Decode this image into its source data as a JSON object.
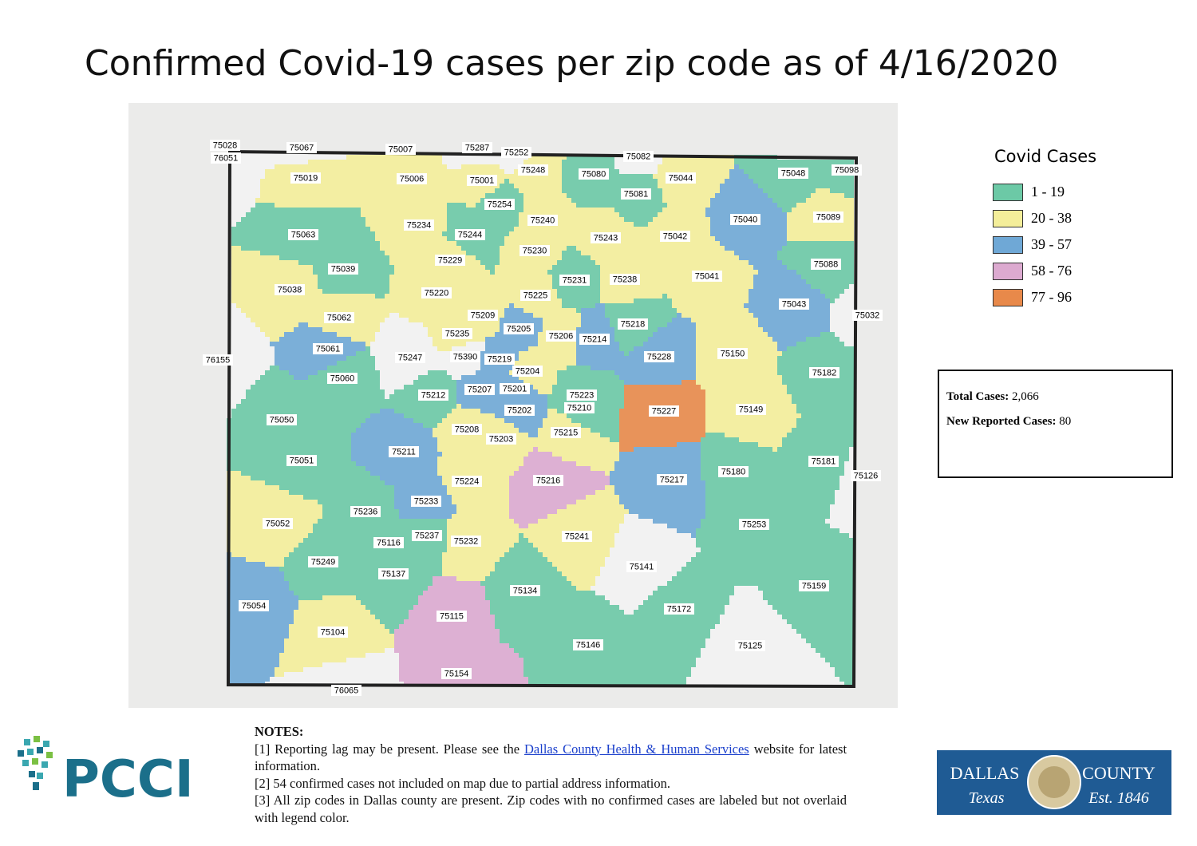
{
  "title": "Confirmed Covid-19 cases per zip code as of 4/16/2020",
  "map": {
    "zips": [
      {
        "label": "75028",
        "color": "#f3f3f3"
      },
      {
        "label": "76051",
        "color": "#f3f3f3"
      },
      {
        "label": "75067",
        "color": "#f3f3f3"
      },
      {
        "label": "75007",
        "color": "#f4ee9a"
      },
      {
        "label": "75287",
        "color": "#f3f3f3"
      },
      {
        "label": "75252",
        "color": "#f3f3f3"
      },
      {
        "label": "75082",
        "color": "#f3f3f3"
      },
      {
        "label": "75019",
        "color": "#f4ee9a"
      },
      {
        "label": "75006",
        "color": "#f4ee9a"
      },
      {
        "label": "75001",
        "color": "#f4ee9a"
      },
      {
        "label": "75248",
        "color": "#f4ee9a"
      },
      {
        "label": "75080",
        "color": "#6cc9a6"
      },
      {
        "label": "75044",
        "color": "#f4ee9a"
      },
      {
        "label": "75048",
        "color": "#6cc9a6"
      },
      {
        "label": "75098",
        "color": "#6cc9a6"
      },
      {
        "label": "75081",
        "color": "#6cc9a6"
      },
      {
        "label": "75254",
        "color": "#6cc9a6"
      },
      {
        "label": "75040",
        "color": "#6fa8d6"
      },
      {
        "label": "75089",
        "color": "#f4ee9a"
      },
      {
        "label": "75234",
        "color": "#f4ee9a"
      },
      {
        "label": "75240",
        "color": "#f4ee9a"
      },
      {
        "label": "75063",
        "color": "#6cc9a6"
      },
      {
        "label": "75244",
        "color": "#6cc9a6"
      },
      {
        "label": "75243",
        "color": "#f4ee9a"
      },
      {
        "label": "75042",
        "color": "#f4ee9a"
      },
      {
        "label": "75230",
        "color": "#f4ee9a"
      },
      {
        "label": "75229",
        "color": "#f4ee9a"
      },
      {
        "label": "75088",
        "color": "#6cc9a6"
      },
      {
        "label": "75039",
        "color": "#6cc9a6"
      },
      {
        "label": "75231",
        "color": "#6cc9a6"
      },
      {
        "label": "75238",
        "color": "#f4ee9a"
      },
      {
        "label": "75041",
        "color": "#f4ee9a"
      },
      {
        "label": "75038",
        "color": "#f4ee9a"
      },
      {
        "label": "75220",
        "color": "#f4ee9a"
      },
      {
        "label": "75225",
        "color": "#f4ee9a"
      },
      {
        "label": "75043",
        "color": "#6fa8d6"
      },
      {
        "label": "75062",
        "color": "#f4ee9a"
      },
      {
        "label": "75209",
        "color": "#f4ee9a"
      },
      {
        "label": "75032",
        "color": "#f3f3f3"
      },
      {
        "label": "75205",
        "color": "#6fa8d6"
      },
      {
        "label": "75218",
        "color": "#6cc9a6"
      },
      {
        "label": "75235",
        "color": "#f4ee9a"
      },
      {
        "label": "75206",
        "color": "#f4ee9a"
      },
      {
        "label": "75214",
        "color": "#6fa8d6"
      },
      {
        "label": "75061",
        "color": "#6fa8d6"
      },
      {
        "label": "75247",
        "color": "#f3f3f3"
      },
      {
        "label": "75390",
        "color": "#f3f3f3"
      },
      {
        "label": "75219",
        "color": "#6fa8d6"
      },
      {
        "label": "75228",
        "color": "#6fa8d6"
      },
      {
        "label": "75150",
        "color": "#f4ee9a"
      },
      {
        "label": "76155",
        "color": "#f3f3f3"
      },
      {
        "label": "75204",
        "color": "#f4ee9a"
      },
      {
        "label": "75182",
        "color": "#6cc9a6"
      },
      {
        "label": "75060",
        "color": "#6cc9a6"
      },
      {
        "label": "75201",
        "color": "#6fa8d6"
      },
      {
        "label": "75223",
        "color": "#6cc9a6"
      },
      {
        "label": "75212",
        "color": "#6cc9a6"
      },
      {
        "label": "75207",
        "color": "#6fa8d6"
      },
      {
        "label": "75210",
        "color": "#6cc9a6"
      },
      {
        "label": "75227",
        "color": "#e8894a"
      },
      {
        "label": "75202",
        "color": "#6fa8d6"
      },
      {
        "label": "75149",
        "color": "#f4ee9a"
      },
      {
        "label": "75050",
        "color": "#6cc9a6"
      },
      {
        "label": "75208",
        "color": "#f4ee9a"
      },
      {
        "label": "75203",
        "color": "#f4ee9a"
      },
      {
        "label": "75215",
        "color": "#f4ee9a"
      },
      {
        "label": "75211",
        "color": "#6fa8d6"
      },
      {
        "label": "75051",
        "color": "#6cc9a6"
      },
      {
        "label": "75181",
        "color": "#6cc9a6"
      },
      {
        "label": "75180",
        "color": "#6cc9a6"
      },
      {
        "label": "75126",
        "color": "#f3f3f3"
      },
      {
        "label": "75217",
        "color": "#6fa8d6"
      },
      {
        "label": "75224",
        "color": "#f4ee9a"
      },
      {
        "label": "75216",
        "color": "#dcaad0"
      },
      {
        "label": "75233",
        "color": "#6fa8d6"
      },
      {
        "label": "75236",
        "color": "#6cc9a6"
      },
      {
        "label": "75052",
        "color": "#f4ee9a"
      },
      {
        "label": "75253",
        "color": "#6cc9a6"
      },
      {
        "label": "75241",
        "color": "#f4ee9a"
      },
      {
        "label": "75237",
        "color": "#6cc9a6"
      },
      {
        "label": "75116",
        "color": "#6cc9a6"
      },
      {
        "label": "75232",
        "color": "#f4ee9a"
      },
      {
        "label": "75249",
        "color": "#6cc9a6"
      },
      {
        "label": "75141",
        "color": "#f3f3f3"
      },
      {
        "label": "75137",
        "color": "#6cc9a6"
      },
      {
        "label": "75159",
        "color": "#6cc9a6"
      },
      {
        "label": "75134",
        "color": "#6cc9a6"
      },
      {
        "label": "75054",
        "color": "#6fa8d6"
      },
      {
        "label": "75172",
        "color": "#6cc9a6"
      },
      {
        "label": "75115",
        "color": "#dcaad0"
      },
      {
        "label": "75104",
        "color": "#f4ee9a"
      },
      {
        "label": "75146",
        "color": "#6cc9a6"
      },
      {
        "label": "75125",
        "color": "#f3f3f3"
      },
      {
        "label": "75154",
        "color": "#dcaad0"
      },
      {
        "label": "76065",
        "color": "#f3f3f3"
      }
    ]
  },
  "legend": {
    "title": "Covid Cases",
    "items": [
      {
        "label": "1 - 19",
        "color": "#6cc9a6"
      },
      {
        "label": "20 - 38",
        "color": "#f4ee9a"
      },
      {
        "label": "39 - 57",
        "color": "#6fa8d6"
      },
      {
        "label": "58 - 76",
        "color": "#dcaad0"
      },
      {
        "label": "77 - 96",
        "color": "#e8894a"
      }
    ]
  },
  "stats": {
    "total_label": "Total Cases:",
    "total": "2,066",
    "new_label": "New Reported Cases:",
    "new": "80"
  },
  "notes": {
    "heading": "NOTES:",
    "note1_before": "[1] Reporting lag may be present. Please see the",
    "note1_link": "Dallas County Health & Human Services",
    "note1_after": "website for latest information.",
    "note2": "[2] 54 confirmed cases not included on map due to partial address information.",
    "note3": "[3] All zip codes in Dallas county are present. Zip codes with no confirmed cases are labeled but not overlaid with legend color."
  },
  "logos": {
    "pcci": "PCCI",
    "dallas": "DALLAS",
    "county": "COUNTY",
    "texas": "Texas",
    "est": "Est. 1846"
  }
}
